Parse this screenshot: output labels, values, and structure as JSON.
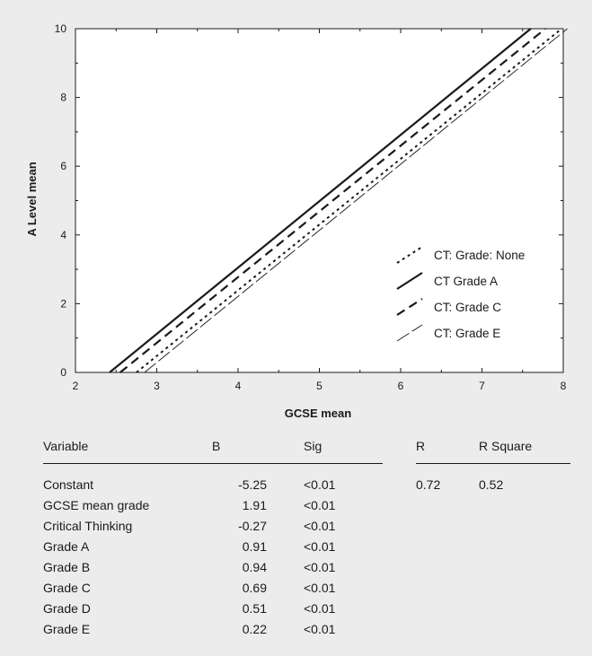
{
  "chart_data": {
    "type": "line",
    "xlabel": "GCSE mean",
    "ylabel": "A Level mean",
    "xlim": [
      2,
      8
    ],
    "ylim": [
      0,
      10
    ],
    "xticks": [
      2,
      3,
      4,
      5,
      6,
      7,
      8
    ],
    "yticks": [
      0,
      2,
      4,
      6,
      8,
      10
    ],
    "grid": false,
    "legend_position": "bottom-right",
    "series": [
      {
        "name": "CT: Grade: None",
        "style": "dotted",
        "x": [
          2.75,
          7.98
        ],
        "y": [
          0,
          10
        ]
      },
      {
        "name": "CT Grade A",
        "style": "solid-thick",
        "x": [
          2.42,
          7.6
        ],
        "y": [
          0,
          10
        ]
      },
      {
        "name": "CT: Grade C",
        "style": "dashed",
        "x": [
          2.55,
          7.78
        ],
        "y": [
          0,
          10
        ]
      },
      {
        "name": "CT: Grade E",
        "style": "long-dash-thin",
        "x": [
          2.85,
          8.05
        ],
        "y": [
          0,
          10
        ]
      }
    ]
  },
  "table": {
    "headers": {
      "variable": "Variable",
      "b": "B",
      "sig": "Sig",
      "r": "R",
      "rsq": "R Square"
    },
    "rows": [
      {
        "variable": "Constant",
        "b": "-5.25",
        "sig": "<0.01",
        "r": "0.72",
        "rsq": "0.52"
      },
      {
        "variable": "GCSE mean grade",
        "b": "1.91",
        "sig": "<0.01",
        "r": "",
        "rsq": ""
      },
      {
        "variable": "Critical Thinking",
        "b": "-0.27",
        "sig": "<0.01",
        "r": "",
        "rsq": ""
      },
      {
        "variable": "Grade A",
        "b": "0.91",
        "sig": "<0.01",
        "r": "",
        "rsq": ""
      },
      {
        "variable": "Grade B",
        "b": "0.94",
        "sig": "<0.01",
        "r": "",
        "rsq": ""
      },
      {
        "variable": "Grade C",
        "b": "0.69",
        "sig": "<0.01",
        "r": "",
        "rsq": ""
      },
      {
        "variable": "Grade D",
        "b": "0.51",
        "sig": "<0.01",
        "r": "",
        "rsq": ""
      },
      {
        "variable": "Grade E",
        "b": "0.22",
        "sig": "<0.01",
        "r": "",
        "rsq": ""
      }
    ]
  }
}
